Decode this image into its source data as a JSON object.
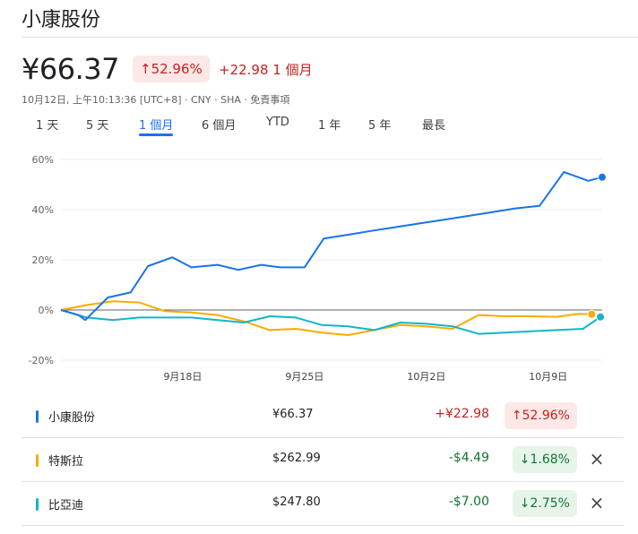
{
  "header": {
    "title": "小康股份",
    "price": "¥66.37",
    "change_pct": "↑52.96%",
    "change_abs": "+22.98 1 個月",
    "meta": "10月12日, 上午10:13:36 [UTC+8] · CNY · SHA · 免責事項"
  },
  "tabs": [
    {
      "label": "1 天"
    },
    {
      "label": "5 天"
    },
    {
      "label": "1 個月",
      "active": true
    },
    {
      "label": "6 個月"
    },
    {
      "label": "YTD"
    },
    {
      "label": "1 年"
    },
    {
      "label": "5 年"
    },
    {
      "label": "最長"
    }
  ],
  "colors": {
    "up": "#c5221f",
    "down": "#137333",
    "main_series": "#1a73e8",
    "tesla_series": "#f9ab00",
    "byd_series": "#12b5cb"
  },
  "chart_data": {
    "type": "line",
    "ylim": [
      -20,
      60
    ],
    "yticks": [
      "60%",
      "40%",
      "20%",
      "0%",
      "-20%"
    ],
    "yticks_values": [
      60,
      40,
      20,
      0,
      -20
    ],
    "xtick_labels": [
      "9月18日",
      "9月25日",
      "10月2日",
      "10月9日"
    ],
    "xtick_positions": [
      7,
      14,
      21,
      28
    ],
    "series": [
      {
        "name": "小康股份",
        "color": "#1a73e8",
        "x": [
          0,
          1,
          1.4,
          2.7,
          4,
          5,
          6.4,
          7.5,
          9,
          10.2,
          11.5,
          12.6,
          14,
          15.1,
          16.5,
          17.8,
          19.2,
          20.6,
          22,
          23.4,
          24.8,
          26.1,
          27.5,
          28.9,
          30.3,
          31.1
        ],
        "y": [
          0,
          -2,
          -4,
          5,
          7,
          17.5,
          21,
          17,
          18,
          16,
          18,
          17,
          17,
          28.5,
          30,
          31.5,
          33,
          34.5,
          36,
          37.5,
          39,
          40.5,
          41.5,
          55,
          51.5,
          52.96
        ]
      },
      {
        "name": "特斯拉",
        "color": "#f9ab00",
        "x": [
          0,
          1.5,
          3,
          4.5,
          6,
          7.5,
          9,
          10.5,
          12,
          13.5,
          15,
          16.5,
          18,
          19.5,
          21,
          22.5,
          24,
          25.5,
          27,
          28.5,
          29.8,
          30.5
        ],
        "y": [
          0,
          2,
          3.5,
          3,
          -0.5,
          -1,
          -2,
          -4.5,
          -8,
          -7.5,
          -9,
          -10,
          -8,
          -6,
          -6.5,
          -7.5,
          -2,
          -2.5,
          -2.5,
          -2.7,
          -1.5,
          -1.68
        ]
      },
      {
        "name": "比亞迪",
        "color": "#12b5cb",
        "x": [
          0,
          1.5,
          3,
          4.5,
          6,
          7.5,
          9,
          10.5,
          12,
          13.5,
          15,
          16.5,
          18,
          19.5,
          21,
          22.5,
          24,
          25.5,
          27,
          28.5,
          30,
          31
        ],
        "y": [
          0,
          -3,
          -4,
          -3,
          -3,
          -3,
          -4,
          -5,
          -2.5,
          -3,
          -6,
          -6.5,
          -8,
          -5,
          -5.5,
          -6.5,
          -9.5,
          -9,
          -8.5,
          -8,
          -7.5,
          -2.75
        ]
      }
    ]
  },
  "legend": [
    {
      "name": "小康股份",
      "price": "¥66.37",
      "change": "+¥22.98",
      "pct": "↑52.96%",
      "direction": "up",
      "color": "#1a73e8",
      "removable": false
    },
    {
      "name": "特斯拉",
      "price": "$262.99",
      "change": "-$4.49",
      "pct": "↓1.68%",
      "direction": "down",
      "color": "#f9ab00",
      "removable": true
    },
    {
      "name": "比亞迪",
      "price": "$247.80",
      "change": "-$7.00",
      "pct": "↓2.75%",
      "direction": "down",
      "color": "#12b5cb",
      "removable": true
    }
  ],
  "icons": {
    "close": "×"
  }
}
